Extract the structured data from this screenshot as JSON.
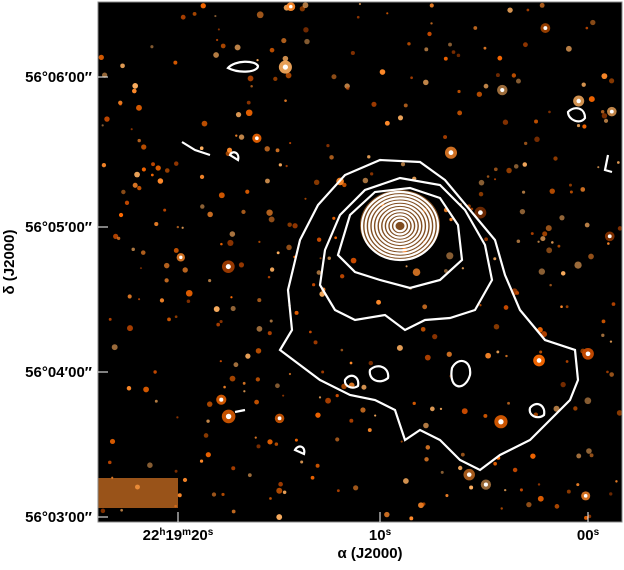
{
  "axes": {
    "x": {
      "label": "α (J2000)",
      "ticks": [
        {
          "parts": [
            "22",
            "h",
            "19",
            "m",
            "20",
            "s"
          ]
        },
        {
          "parts": [
            "10",
            "s"
          ]
        },
        {
          "parts": [
            "00",
            "s"
          ]
        }
      ]
    },
    "y": {
      "label": "δ (J2000)",
      "ticks": [
        "56°06′00″",
        "56°05′00″",
        "56°04′00″",
        "56°03′00″"
      ]
    }
  }
}
